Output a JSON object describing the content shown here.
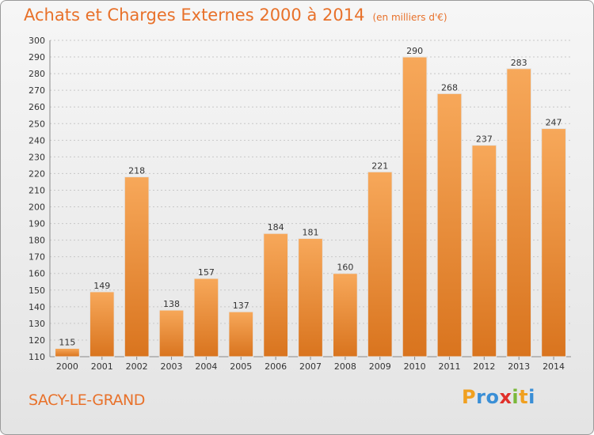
{
  "header": {
    "title": "Achats et Charges Externes 2000 à 2014",
    "unit": "(en milliers d'€)"
  },
  "footer": {
    "commune": "SACY-LE-GRAND",
    "logo": "Proxiti"
  },
  "colors": {
    "accent": "#e8712a",
    "bar_top": "#f7a85a",
    "bar_bottom": "#d9741e",
    "logo_letters": [
      "#f0a020",
      "#3a8fd6",
      "#3a8fd6",
      "#e0302a",
      "#7ab83a",
      "#f0a020",
      "#3a8fd6"
    ]
  },
  "chart_data": {
    "type": "bar",
    "title": "Achats et Charges Externes 2000 à 2014",
    "subtitle": "(en milliers d'€)",
    "xlabel": "",
    "ylabel": "",
    "categories": [
      "2000",
      "2001",
      "2002",
      "2003",
      "2004",
      "2005",
      "2006",
      "2007",
      "2008",
      "2009",
      "2010",
      "2011",
      "2012",
      "2013",
      "2014"
    ],
    "values": [
      115,
      149,
      218,
      138,
      157,
      137,
      184,
      181,
      160,
      221,
      290,
      268,
      237,
      283,
      247
    ],
    "ylim": [
      110,
      300
    ],
    "yticks": [
      110,
      120,
      130,
      140,
      150,
      160,
      170,
      180,
      190,
      200,
      210,
      220,
      230,
      240,
      250,
      260,
      270,
      280,
      290,
      300
    ],
    "grid": true,
    "data_labels": true
  }
}
